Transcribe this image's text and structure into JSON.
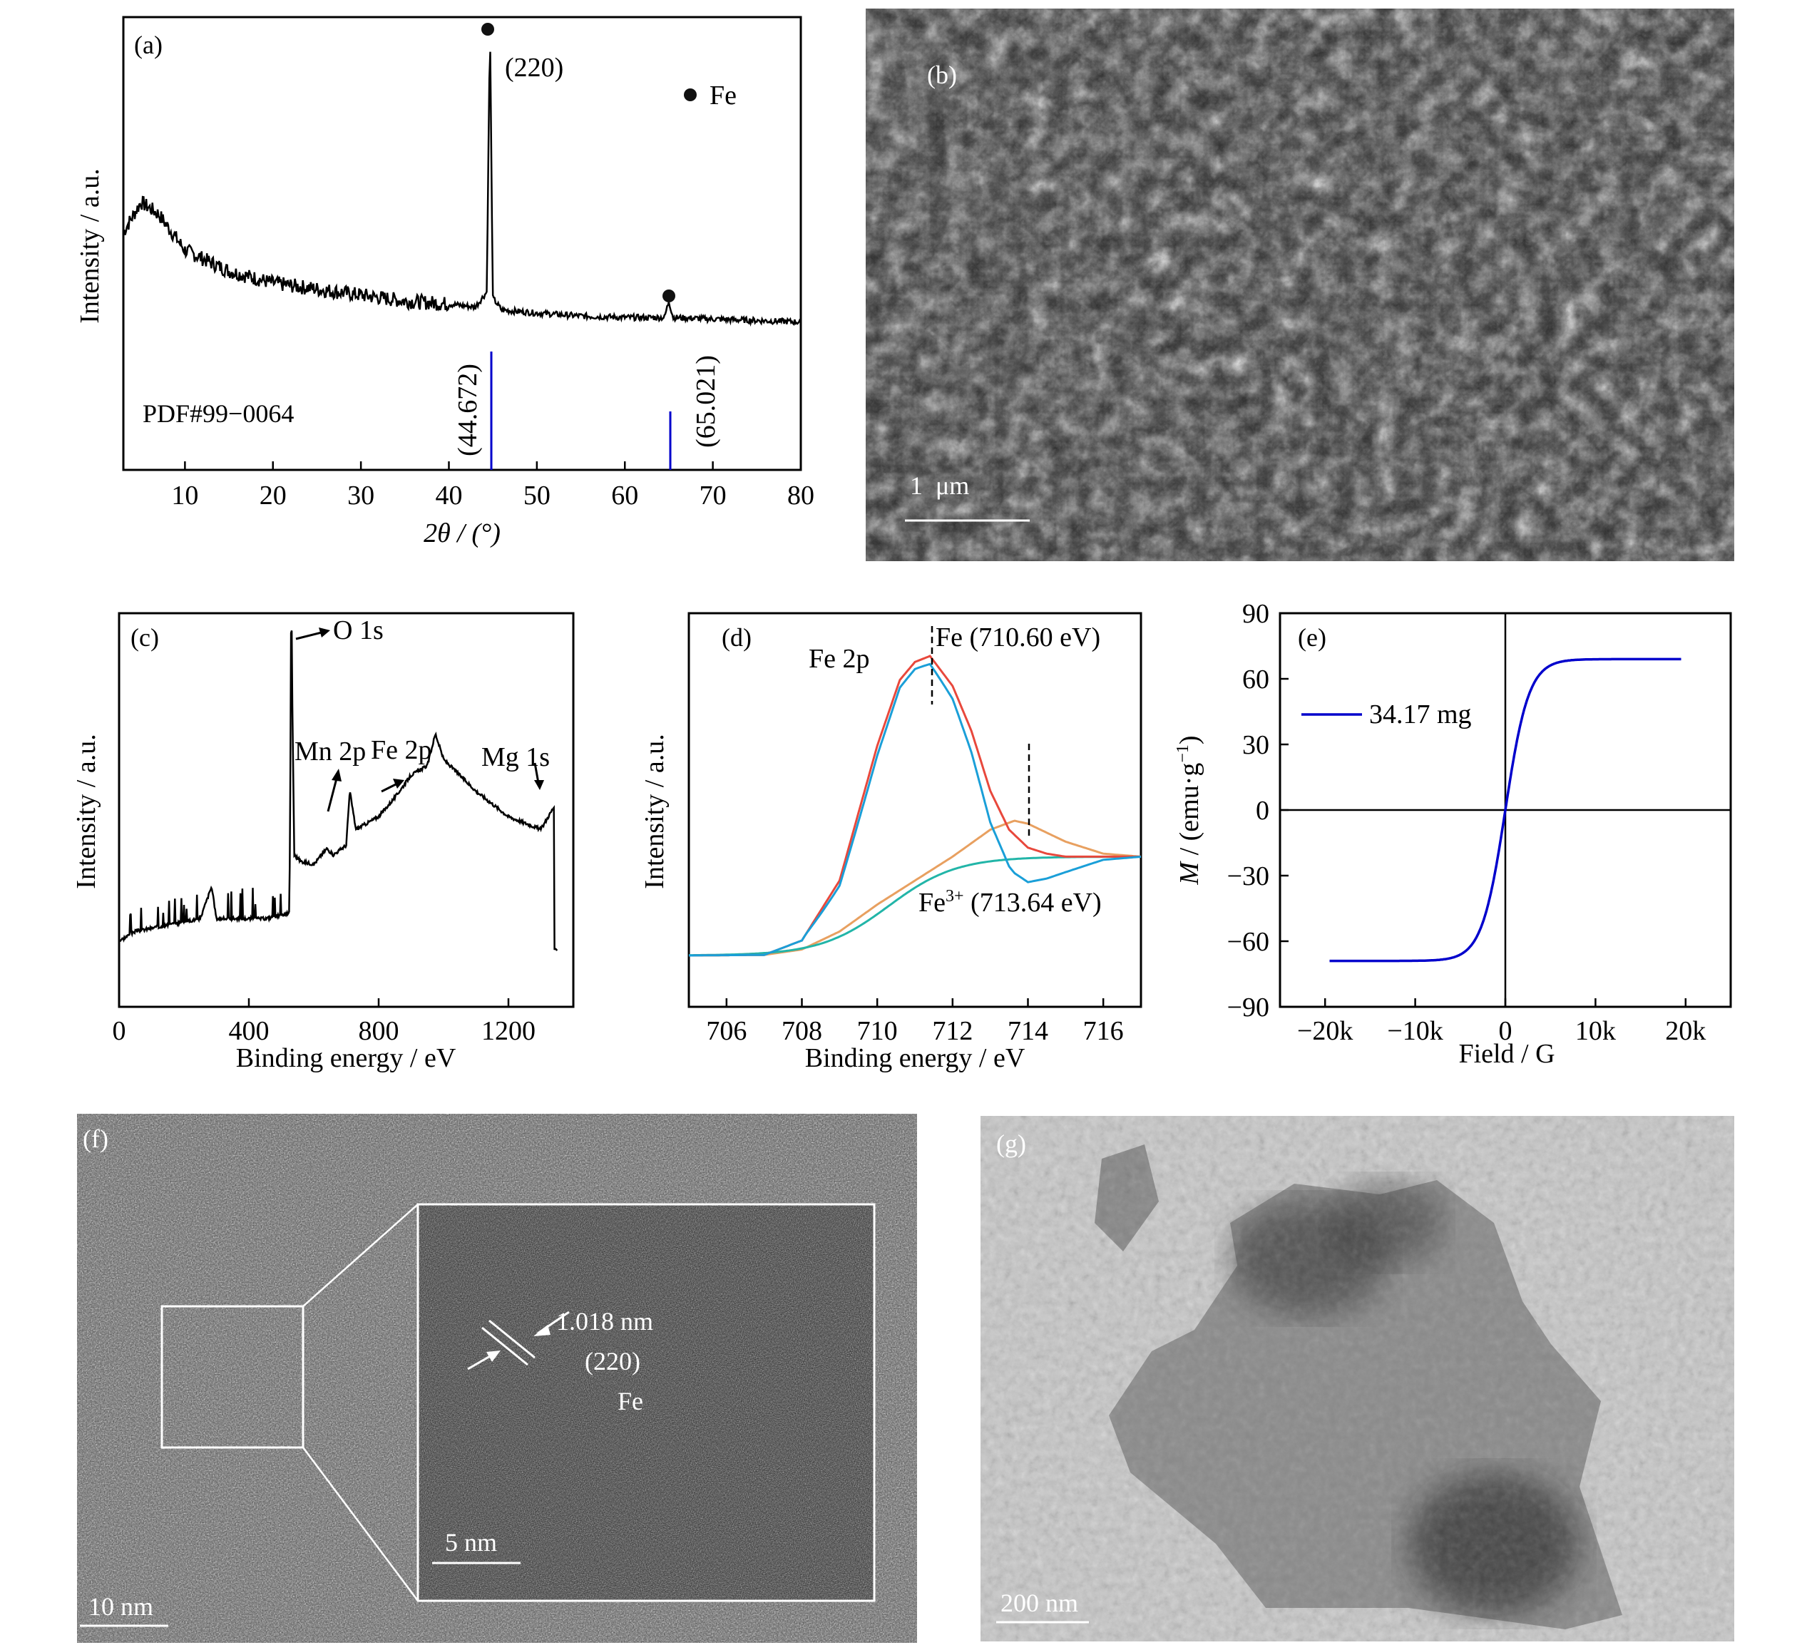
{
  "panels": {
    "a": {
      "label": "(a)",
      "ylabel": "Intensity / a.u.",
      "xlabel": "2θ / (°)",
      "peak_label": "(220)",
      "legend_label": "Fe",
      "ref_label": "PDF#99−0064",
      "ref_lines": [
        {
          "x": 44.672,
          "label": "(44.672)"
        },
        {
          "x": 65.021,
          "label": "(65.021)"
        }
      ],
      "xticks": [
        "10",
        "20",
        "30",
        "40",
        "50",
        "60",
        "70",
        "80"
      ],
      "colors": {
        "pattern": "#000000",
        "ref": "#0000cc"
      }
    },
    "b": {
      "label": "(b)",
      "scale": "1  μm"
    },
    "c": {
      "label": "(c)",
      "ylabel": "Intensity / a.u.",
      "xlabel": "Binding energy / eV",
      "xticks": [
        "0",
        "400",
        "800",
        "1200"
      ],
      "annotations": [
        "O 1s",
        "Mn 2p",
        "Fe 2p",
        "Mg 1s"
      ]
    },
    "d": {
      "label": "(d)",
      "ylabel": "Intensity / a.u.",
      "xlabel": "Binding energy / eV",
      "title": "Fe 2p",
      "peak1": "Fe (710.60 eV)",
      "peak2_prefix": "Fe",
      "peak2_sup": "3+",
      "peak2_suffix": " (713.64 eV)",
      "xticks": [
        "706",
        "708",
        "710",
        "712",
        "714",
        "716"
      ],
      "colors": {
        "envelope": "#e8483c",
        "fe": "#1a9fd8",
        "fe3": "#e8a060",
        "background": "#22b5a8"
      }
    },
    "e": {
      "label": "(e)",
      "ylabel_var": "M",
      "ylabel_rest": " / (emu·g",
      "ylabel_sup": "−1",
      "ylabel_end": ")",
      "xlabel": "Field / G",
      "legend": "34.17 mg",
      "xticks": [
        "−20k",
        "−10k",
        "0",
        "10k",
        "20k"
      ],
      "yticks": [
        "90",
        "60",
        "30",
        "0",
        "−30",
        "−60",
        "−90"
      ],
      "colors": {
        "curve": "#0000cc"
      }
    },
    "f": {
      "label": "(f)",
      "scale_outer": "10 nm",
      "scale_inner": "5 nm",
      "spacing": "1.018 nm",
      "plane": "(220)",
      "element": "Fe"
    },
    "g": {
      "label": "(g)",
      "scale": "200 nm"
    }
  },
  "chart_data": [
    {
      "type": "line",
      "panel": "a",
      "title": "",
      "xlabel": "2θ / (°)",
      "ylabel": "Intensity / a.u.",
      "xlim": [
        3,
        80
      ],
      "x": [
        3,
        5,
        7,
        10,
        15,
        20,
        25,
        30,
        35,
        40,
        43,
        44.3,
        44.67,
        45.0,
        46,
        50,
        55,
        60,
        64.5,
        65.0,
        65.5,
        70,
        75,
        80
      ],
      "y": [
        0.32,
        0.42,
        0.38,
        0.26,
        0.19,
        0.15,
        0.13,
        0.11,
        0.09,
        0.08,
        0.07,
        0.12,
        1.0,
        0.1,
        0.06,
        0.05,
        0.04,
        0.035,
        0.035,
        0.09,
        0.035,
        0.03,
        0.025,
        0.02
      ],
      "reference_lines": [
        44.672,
        65.021
      ]
    },
    {
      "type": "line",
      "panel": "c",
      "title": "",
      "xlabel": "Binding energy / eV",
      "ylabel": "Intensity / a.u.",
      "xlim": [
        0,
        1350
      ],
      "x": [
        0,
        50,
        100,
        150,
        200,
        250,
        285,
        300,
        350,
        400,
        450,
        500,
        525,
        531,
        540,
        560,
        600,
        640,
        660,
        700,
        711,
        730,
        800,
        850,
        900,
        950,
        975,
        1000,
        1100,
        1200,
        1300,
        1340
      ],
      "y": [
        0.03,
        0.06,
        0.07,
        0.08,
        0.09,
        0.1,
        0.2,
        0.1,
        0.1,
        0.1,
        0.1,
        0.11,
        0.12,
        1.0,
        0.3,
        0.28,
        0.27,
        0.32,
        0.3,
        0.33,
        0.5,
        0.38,
        0.42,
        0.48,
        0.55,
        0.58,
        0.68,
        0.6,
        0.5,
        0.42,
        0.38,
        0.45
      ]
    },
    {
      "type": "line",
      "panel": "d",
      "title": "",
      "xlabel": "Binding energy / eV",
      "ylabel": "Intensity / a.u.",
      "xlim": [
        705,
        717
      ],
      "series": [
        {
          "name": "Fe (710.60 eV)",
          "x": [
            705,
            707,
            708,
            709,
            710,
            710.6,
            711,
            711.4,
            712,
            712.5,
            713,
            713.5,
            714,
            714.5,
            715,
            715.5,
            716,
            717
          ],
          "y": [
            0,
            0.002,
            0.05,
            0.25,
            0.7,
            0.92,
            0.98,
            1.0,
            0.9,
            0.75,
            0.55,
            0.42,
            0.36,
            0.34,
            0.33,
            0.33,
            0.33,
            0.33
          ]
        },
        {
          "name": "Fe3+ (713.64 eV)",
          "x": [
            705,
            707,
            708,
            709,
            710,
            711,
            712,
            713,
            713.64,
            714,
            715,
            716,
            717
          ],
          "y": [
            0,
            0.002,
            0.02,
            0.08,
            0.17,
            0.25,
            0.33,
            0.42,
            0.45,
            0.44,
            0.38,
            0.34,
            0.33
          ]
        }
      ]
    },
    {
      "type": "line",
      "panel": "e",
      "title": "",
      "xlabel": "Field / G",
      "ylabel": "M / (emu·g−1)",
      "xlim": [
        -25000,
        25000
      ],
      "ylim": [
        -90,
        90
      ],
      "series": [
        {
          "name": "34.17 mg",
          "x": [
            -19500,
            -15000,
            -10000,
            -6000,
            -4000,
            -2500,
            -1500,
            -800,
            -300,
            0,
            300,
            800,
            1500,
            2500,
            4000,
            6000,
            10000,
            15000,
            19500
          ],
          "y": [
            -69,
            -68,
            -66,
            -62,
            -56,
            -46,
            -34,
            -20,
            -8,
            0,
            8,
            20,
            34,
            46,
            56,
            62,
            66,
            68,
            69
          ]
        }
      ]
    }
  ]
}
